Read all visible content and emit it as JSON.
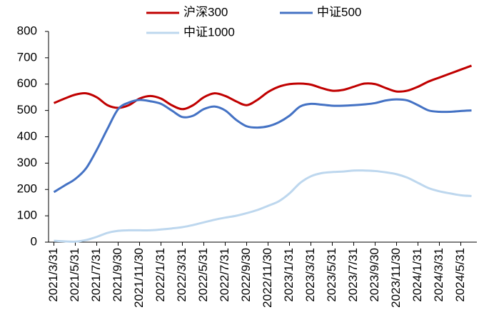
{
  "chart_data": {
    "type": "line",
    "categories": [
      "2021/3/31",
      null,
      "2021/5/31",
      null,
      "2021/7/31",
      null,
      "2021/9/30",
      null,
      "2021/11/30",
      null,
      "2022/1/31",
      null,
      "2022/3/31",
      null,
      "2022/5/31",
      null,
      "2022/7/31",
      null,
      "2022/9/30",
      null,
      "2022/11/30",
      null,
      "2023/1/31",
      null,
      "2023/3/31",
      null,
      "2023/5/31",
      null,
      "2023/7/31",
      null,
      "2023/9/30",
      null,
      "2023/11/30",
      null,
      "2024/1/31",
      null,
      "2024/3/31",
      null,
      "2024/5/31",
      null
    ],
    "series": [
      {
        "name": "沪深300",
        "color": "#c00000",
        "values": [
          528,
          545,
          560,
          565,
          550,
          520,
          510,
          520,
          545,
          555,
          545,
          520,
          505,
          520,
          550,
          565,
          555,
          535,
          520,
          540,
          570,
          590,
          600,
          602,
          598,
          585,
          575,
          578,
          590,
          602,
          600,
          585,
          572,
          575,
          590,
          610,
          625,
          640,
          655,
          670
        ]
      },
      {
        "name": "中证500",
        "color": "#4472c4",
        "values": [
          190,
          215,
          240,
          280,
          350,
          430,
          505,
          530,
          540,
          535,
          525,
          500,
          475,
          480,
          505,
          515,
          500,
          465,
          440,
          435,
          440,
          455,
          480,
          515,
          525,
          522,
          518,
          518,
          520,
          523,
          528,
          538,
          542,
          538,
          520,
          500,
          495,
          495,
          498,
          500
        ]
      },
      {
        "name": "中证1000",
        "color": "#bdd7ee",
        "values": [
          5,
          3,
          2,
          8,
          20,
          35,
          43,
          45,
          45,
          45,
          48,
          52,
          57,
          65,
          75,
          85,
          93,
          100,
          110,
          122,
          138,
          155,
          185,
          225,
          250,
          262,
          266,
          268,
          272,
          272,
          270,
          265,
          258,
          245,
          225,
          205,
          193,
          185,
          178,
          175
        ]
      }
    ],
    "ylim": [
      0,
      800
    ],
    "yticks": [
      0,
      100,
      200,
      300,
      400,
      500,
      600,
      700,
      800
    ],
    "grid": false
  }
}
